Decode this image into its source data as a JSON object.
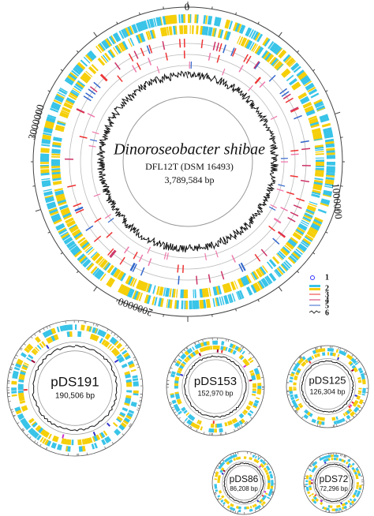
{
  "main": {
    "name": "Dinoroseobacter shibae",
    "strain": "DFL12T (DSM 16493)",
    "size": "3,789,584 bp",
    "scale_labels": [
      "0",
      "1000000",
      "2000000",
      "3000000"
    ]
  },
  "legend": [
    "1",
    "2",
    "3",
    "4",
    "5",
    "6"
  ],
  "plasmids": [
    {
      "name": "pDS191",
      "size": "190,506 bp"
    },
    {
      "name": "pDS153",
      "size": "152,970 bp"
    },
    {
      "name": "pDS125",
      "size": "126,304 bp"
    },
    {
      "name": "pDS86",
      "size": "86,208 bp"
    },
    {
      "name": "pDS72",
      "size": "72,296 bp"
    }
  ]
}
